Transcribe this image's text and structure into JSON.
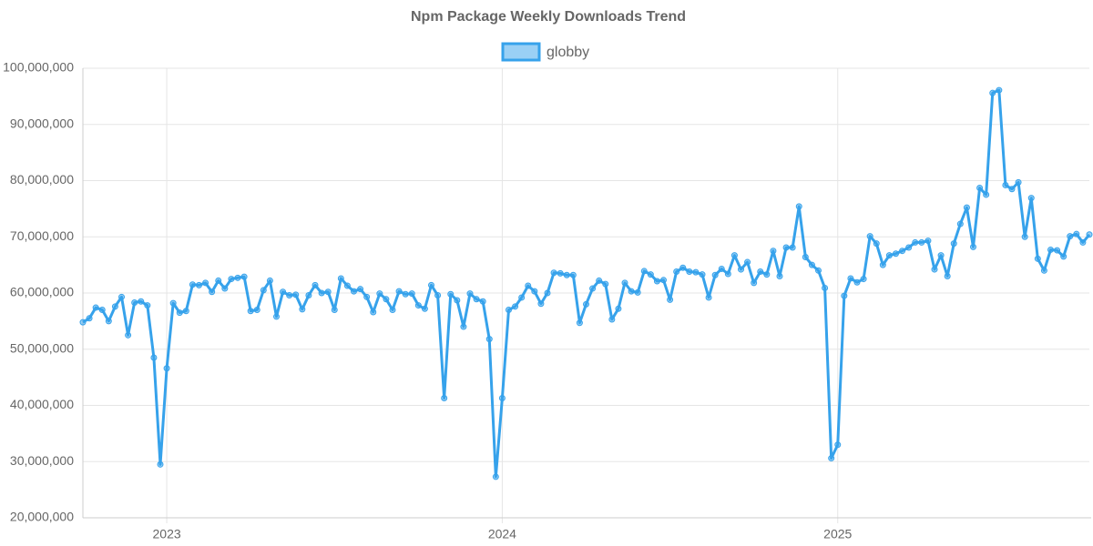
{
  "chart_data": {
    "type": "line",
    "title": "Npm Package Weekly Downloads Trend",
    "categories": [
      null,
      null,
      null,
      null,
      null,
      null,
      null,
      null,
      null,
      null,
      null,
      null,
      null,
      "2023",
      null,
      null,
      null,
      null,
      null,
      null,
      null,
      null,
      null,
      null,
      null,
      null,
      null,
      null,
      null,
      null,
      null,
      null,
      null,
      null,
      null,
      null,
      null,
      null,
      null,
      null,
      null,
      null,
      null,
      null,
      null,
      null,
      null,
      null,
      null,
      null,
      null,
      null,
      null,
      null,
      null,
      null,
      null,
      null,
      null,
      null,
      null,
      null,
      null,
      null,
      null,
      "2024",
      null,
      null,
      null,
      null,
      null,
      null,
      null,
      null,
      null,
      null,
      null,
      null,
      null,
      null,
      null,
      null,
      null,
      null,
      null,
      null,
      null,
      null,
      null,
      null,
      null,
      null,
      null,
      null,
      null,
      null,
      null,
      null,
      null,
      null,
      null,
      null,
      null,
      null,
      null,
      null,
      null,
      null,
      null,
      null,
      null,
      null,
      null,
      null,
      null,
      null,
      null,
      "2025",
      null,
      null,
      null,
      null,
      null,
      null,
      null,
      null,
      null,
      null,
      null,
      null,
      null,
      null,
      null,
      null,
      null,
      null,
      null,
      null,
      null,
      null,
      null,
      null,
      null,
      null,
      null,
      null,
      null,
      null,
      null,
      null,
      null,
      null,
      null,
      null,
      null,
      null,
      null
    ],
    "series": [
      {
        "name": "globby",
        "color": "#36a2eb",
        "values": [
          54800000,
          55500000,
          57400000,
          57000000,
          55000000,
          57600000,
          59300000,
          52500000,
          58300000,
          58500000,
          57800000,
          48500000,
          29500000,
          46600000,
          58200000,
          56500000,
          56800000,
          61500000,
          61400000,
          61800000,
          60200000,
          62200000,
          60800000,
          62500000,
          62700000,
          62900000,
          56800000,
          57000000,
          60500000,
          62200000,
          55800000,
          60200000,
          59600000,
          59700000,
          57100000,
          59600000,
          61400000,
          60000000,
          60200000,
          57000000,
          62600000,
          61300000,
          60300000,
          60700000,
          59300000,
          56600000,
          59900000,
          58900000,
          57000000,
          60300000,
          59800000,
          59900000,
          57800000,
          57200000,
          61400000,
          59600000,
          41300000,
          59800000,
          58700000,
          54000000,
          59900000,
          58900000,
          58500000,
          51800000,
          27300000,
          41300000,
          57000000,
          57600000,
          59200000,
          61300000,
          60300000,
          58100000,
          60000000,
          63600000,
          63500000,
          63200000,
          63200000,
          54700000,
          58000000,
          60800000,
          62200000,
          61600000,
          55300000,
          57200000,
          61800000,
          60300000,
          60100000,
          63900000,
          63300000,
          62100000,
          62300000,
          58800000,
          63800000,
          64500000,
          63800000,
          63700000,
          63300000,
          59200000,
          63200000,
          64300000,
          63400000,
          66700000,
          64200000,
          65500000,
          61800000,
          63800000,
          63300000,
          67500000,
          63000000,
          68100000,
          68100000,
          75400000,
          66400000,
          65000000,
          64000000,
          60900000,
          30600000,
          33000000,
          59500000,
          62600000,
          61900000,
          62500000,
          70100000,
          68800000,
          65000000,
          66700000,
          67000000,
          67500000,
          68100000,
          69000000,
          69000000,
          69300000,
          64200000,
          66700000,
          63000000,
          68800000,
          72300000,
          75200000,
          68200000,
          78700000,
          77500000,
          95600000,
          96100000,
          79200000,
          78500000,
          79700000,
          70000000,
          76900000,
          66100000,
          64000000,
          67700000,
          67600000,
          66500000,
          70100000,
          70500000,
          69000000,
          70400000
        ]
      }
    ],
    "ylim": [
      20000000,
      100000000
    ],
    "yticks": [
      {
        "value": 20000000,
        "label": "20,000,000"
      },
      {
        "value": 30000000,
        "label": "30,000,000"
      },
      {
        "value": 40000000,
        "label": "40,000,000"
      },
      {
        "value": 50000000,
        "label": "50,000,000"
      },
      {
        "value": 60000000,
        "label": "60,000,000"
      },
      {
        "value": 70000000,
        "label": "70,000,000"
      },
      {
        "value": 80000000,
        "label": "80,000,000"
      },
      {
        "value": 90000000,
        "label": "90,000,000"
      },
      {
        "value": 100000000,
        "label": "100,000,000"
      }
    ],
    "grid": true,
    "legend": "top"
  }
}
